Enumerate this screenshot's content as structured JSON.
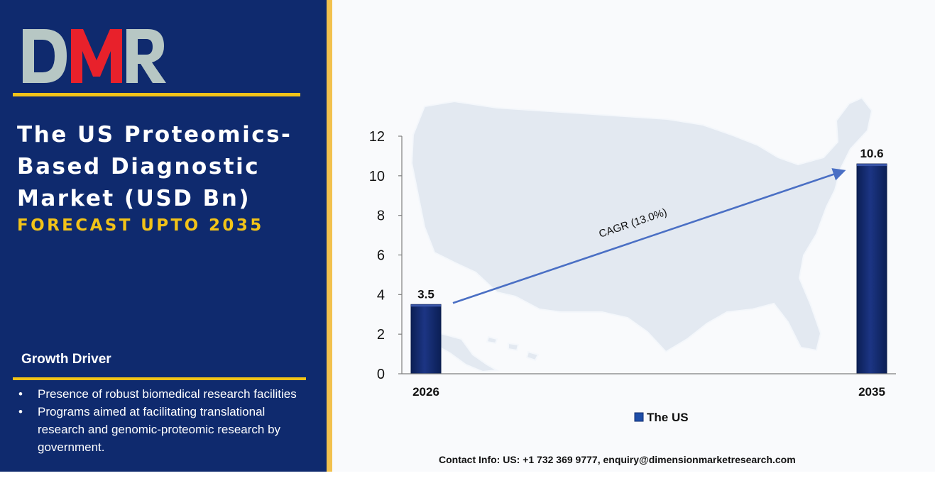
{
  "brand": {
    "logo_text": "DMR",
    "colors": {
      "panel": "#0f2a6e",
      "accent": "#f2c318",
      "logo_red": "#e8212b",
      "logo_gray": "#b7c7c4",
      "bar": "#142a6b"
    }
  },
  "header": {
    "title": "The US Proteomics-Based Diagnostic Market (USD Bn)",
    "subtitle": "FORECAST UPTO 2035"
  },
  "growth_driver": {
    "heading": "Growth Driver",
    "items": [
      "Presence of robust biomedical research facilities",
      "Programs aimed at facilitating translational research and genomic-proteomic research by government."
    ]
  },
  "contact": "Contact Info: US: +1 732 369 9777, enquiry@dimensionmarketresearch.com",
  "background_icon": "us-map-silhouette",
  "chart_data": {
    "type": "bar",
    "categories": [
      "2026",
      "2035"
    ],
    "series": [
      {
        "name": "The US",
        "values": [
          3.5,
          10.6
        ]
      }
    ],
    "data_labels": [
      "3.5",
      "10.6"
    ],
    "xlabel": "",
    "ylabel": "",
    "ylim": [
      0,
      12
    ],
    "yticks": [
      0,
      2,
      4,
      6,
      8,
      10,
      12
    ],
    "grid": false,
    "legend": "bottom",
    "annotation": "CAGR (13.0%)"
  }
}
